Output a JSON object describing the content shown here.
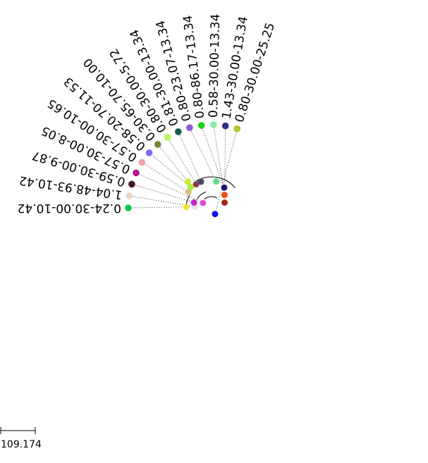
{
  "tree": {
    "leaves": [
      {
        "label": "0.24-30.00-10.42",
        "color": "#11c45a",
        "angle": 180
      },
      {
        "label": "1.04-48.93-10.42",
        "color": "#ead8c8",
        "angle": 171.7
      },
      {
        "label": "0.59-30.00-9.87",
        "color": "#4a1230",
        "angle": 163.4
      },
      {
        "label": "0.57-30.00-8.05",
        "color": "#b0159a",
        "angle": 155.1
      },
      {
        "label": "0.57-30.00-10.65",
        "color": "#eda4ae",
        "angle": 146.8
      },
      {
        "label": "0.58-20.70-11.53",
        "color": "#7b6bf2",
        "angle": 138.5
      },
      {
        "label": "0.30-65.70-10.00",
        "color": "#6f8b2f",
        "angle": 130.2
      },
      {
        "label": "0.80-30.00-5.72",
        "color": "#b7f85c",
        "angle": 121.9
      },
      {
        "label": "0.81-30.00-13.34",
        "color": "#145a56",
        "angle": 113.6
      },
      {
        "label": "0.80-23.07-13.34",
        "color": "#8e5ad6",
        "angle": 105.3
      },
      {
        "label": "0.80-86.17-13.34",
        "color": "#1cd31c",
        "angle": 97.0
      },
      {
        "label": "0.58-30.00-13.34",
        "color": "#8ce8a8",
        "angle": 88.7
      },
      {
        "label": "1.43-30.00-13.34",
        "color": "#2e2f7e",
        "angle": 80.4
      },
      {
        "label": "0.80-30.00-25.25",
        "color": "#b5c42a",
        "angle": 72.1
      }
    ],
    "internal_nodes": [
      {
        "color": "#f0e640"
      },
      {
        "color": "#e8e0ea"
      },
      {
        "color": "#c427c8"
      },
      {
        "color": "#e04fd8"
      },
      {
        "color": "#d6c07a"
      },
      {
        "color": "#a8f03a"
      },
      {
        "color": "#c9ef2a"
      },
      {
        "color": "#8a3a4a"
      },
      {
        "color": "#474a6a"
      },
      {
        "color": "#66d98a"
      },
      {
        "color": "#14166e"
      },
      {
        "color": "#f14a12"
      },
      {
        "color": "#a52a18"
      },
      {
        "color": "#1010e8"
      }
    ]
  },
  "scale_bar": {
    "label": "109.174"
  }
}
